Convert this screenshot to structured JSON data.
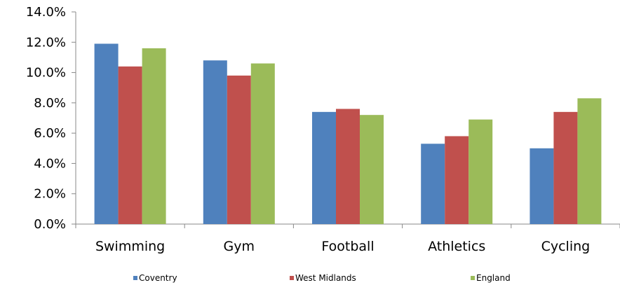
{
  "chart_data": {
    "type": "bar",
    "title": "",
    "xlabel": "",
    "ylabel": "",
    "categories": [
      "Swimming",
      "Gym",
      "Football",
      "Athletics",
      "Cycling"
    ],
    "series": [
      {
        "name": "Coventry",
        "color": "#4f81bd",
        "values": [
          11.9,
          10.8,
          7.4,
          5.3,
          5.0
        ]
      },
      {
        "name": "West Midlands",
        "color": "#c0504d",
        "values": [
          10.4,
          9.8,
          7.6,
          5.8,
          7.4
        ]
      },
      {
        "name": "England",
        "color": "#9bbb59",
        "values": [
          11.6,
          10.6,
          7.2,
          6.9,
          8.3
        ]
      }
    ],
    "yticks": [
      "0.0%",
      "2.0%",
      "4.0%",
      "6.0%",
      "8.0%",
      "10.0%",
      "12.0%",
      "14.0%"
    ],
    "ylim": [
      0,
      14
    ],
    "grid": false,
    "legend_position": "bottom"
  }
}
